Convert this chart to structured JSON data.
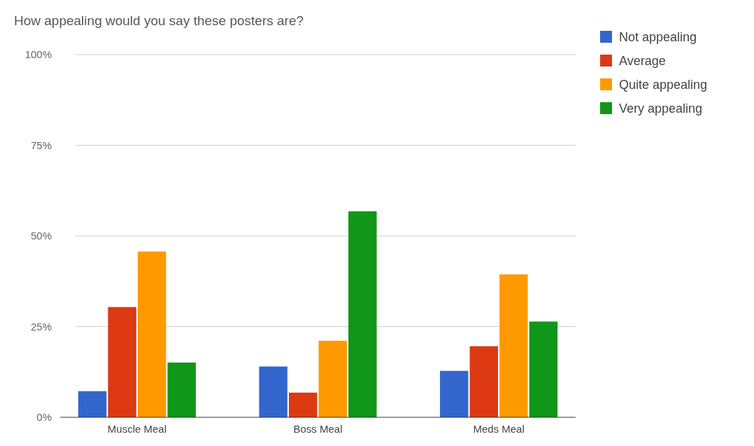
{
  "chart_data": {
    "type": "bar",
    "title": "How appealing would you say these posters are?",
    "categories": [
      "Muscle Meal",
      "Boss Meal",
      "Meds Meal"
    ],
    "series": [
      {
        "name": "Not appealing",
        "color": "#3366cc",
        "values": [
          7.2,
          14,
          12.8
        ]
      },
      {
        "name": "Average",
        "color": "#dc3912",
        "values": [
          30.4,
          6.8,
          19.6
        ]
      },
      {
        "name": "Quite appealing",
        "color": "#ff9900",
        "values": [
          45.7,
          21.1,
          39.4
        ]
      },
      {
        "name": "Very appealing",
        "color": "#109618",
        "values": [
          15.1,
          56.8,
          26.4
        ]
      }
    ],
    "ylim": [
      0,
      100
    ],
    "yticks": [
      {
        "value": 0,
        "label": "0%"
      },
      {
        "value": 25,
        "label": "25%"
      },
      {
        "value": 50,
        "label": "50%"
      },
      {
        "value": 75,
        "label": "75%"
      },
      {
        "value": 100,
        "label": "100%"
      }
    ],
    "grid": "y",
    "legend": "top right"
  }
}
